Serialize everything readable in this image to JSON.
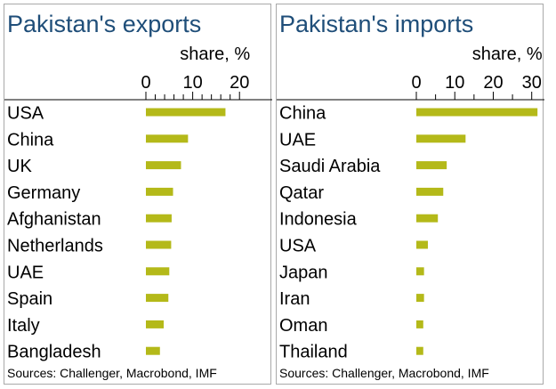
{
  "chart_data": [
    {
      "type": "bar",
      "orientation": "horizontal",
      "title": "Pakistan's exports",
      "xlabel": "share, %",
      "xlim": [
        0,
        23
      ],
      "xticks": [
        0,
        10,
        20
      ],
      "minor_ticks": [
        2,
        4,
        6,
        8,
        12,
        14,
        16,
        18
      ],
      "categories": [
        "USA",
        "China",
        "UK",
        "Germany",
        "Afghanistan",
        "Netherlands",
        "UAE",
        "Spain",
        "Italy",
        "Bangladesh"
      ],
      "values": [
        17.0,
        9.0,
        7.5,
        5.8,
        5.5,
        5.4,
        5.0,
        4.8,
        3.8,
        3.0
      ],
      "bar_color": "#b4b919",
      "source": "Sources: Challenger, Macrobond, IMF"
    },
    {
      "type": "bar",
      "orientation": "horizontal",
      "title": "Pakistan's imports",
      "xlabel": "share, %",
      "xlim": [
        0,
        34
      ],
      "xticks": [
        0,
        10,
        20,
        30
      ],
      "minor_ticks": [
        5,
        15,
        25
      ],
      "categories": [
        "China",
        "UAE",
        "Saudi Arabia",
        "Qatar",
        "Indonesia",
        "USA",
        "Japan",
        "Iran",
        "Oman",
        "Thailand"
      ],
      "values": [
        31.5,
        12.8,
        7.9,
        7.0,
        5.6,
        3.0,
        2.0,
        2.0,
        1.8,
        1.8
      ],
      "bar_color": "#b4b919",
      "source": "Sources: Challenger, Macrobond, IMF"
    }
  ]
}
